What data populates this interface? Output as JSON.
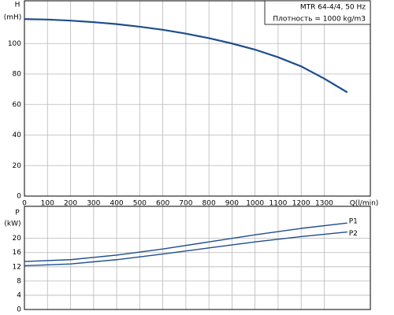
{
  "chart_data": [
    {
      "type": "line",
      "ylabel": "H",
      "yunit": "(mH)",
      "xlabel": "Q(l/min)",
      "info": [
        "MTR 64-4/4, 50 Hz",
        "Плотность = 1000 kg/m3"
      ],
      "xlim": [
        0,
        1500
      ],
      "xticks": [
        0,
        100,
        200,
        300,
        400,
        500,
        600,
        700,
        800,
        900,
        1000,
        1100,
        1200,
        1300
      ],
      "ylim": [
        0,
        128
      ],
      "yticks": [
        0,
        20,
        40,
        60,
        80,
        100
      ],
      "grid": true,
      "x": [
        0,
        100,
        200,
        300,
        400,
        500,
        600,
        700,
        800,
        900,
        1000,
        1100,
        1200,
        1300,
        1400
      ],
      "series": [
        {
          "color": "#1f4e8c",
          "values": [
            116,
            115.7,
            115,
            114,
            112.7,
            111,
            109,
            106.5,
            103.5,
            100,
            96,
            91,
            85,
            77,
            68
          ]
        }
      ]
    },
    {
      "type": "line",
      "ylabel": "P",
      "yunit": "(kW)",
      "xlim": [
        0,
        1500
      ],
      "xticks": [
        0,
        100,
        200,
        300,
        400,
        500,
        600,
        700,
        800,
        900,
        1000,
        1100,
        1200,
        1300
      ],
      "ylim": [
        0,
        29
      ],
      "yticks": [
        0,
        4,
        8,
        12,
        16,
        20
      ],
      "grid": true,
      "x": [
        0,
        200,
        400,
        600,
        800,
        1000,
        1200,
        1400
      ],
      "series": [
        {
          "name": "P1",
          "color": "#1f4e8c",
          "values": [
            13.5,
            14,
            15.3,
            17,
            19,
            21,
            22.8,
            24.3
          ]
        },
        {
          "name": "P2",
          "color": "#1f4e8c",
          "values": [
            12.3,
            12.8,
            14,
            15.6,
            17.3,
            19,
            20.5,
            21.8
          ]
        }
      ]
    }
  ]
}
